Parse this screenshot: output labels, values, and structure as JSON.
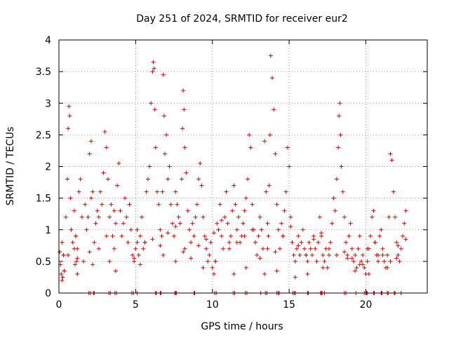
{
  "chart_data": {
    "type": "scatter",
    "title": "Day 251 of 2024, SRMTID for receiver eur2",
    "xlabel": "GPS time / hours",
    "ylabel": "SRMTID / TECUs",
    "xlim": [
      0,
      24
    ],
    "ylim": [
      0,
      4
    ],
    "xticks": [
      0,
      5,
      10,
      15,
      20
    ],
    "xtick_labels": [
      "0",
      "5",
      "10",
      "15",
      "20"
    ],
    "yticks": [
      0,
      0.5,
      1,
      1.5,
      2,
      2.5,
      3,
      3.5,
      4
    ],
    "ytick_labels": [
      "0",
      "0.5",
      "1",
      "1.5",
      "2",
      "2.5",
      "3",
      "3.5",
      "4"
    ],
    "grid": true,
    "marker": "plus",
    "color": "#e00000",
    "series": [
      {
        "name": "SRMTID",
        "x": [
          0.05,
          0.1,
          0.15,
          0.2,
          0.25,
          0.3,
          0.35,
          0.45,
          0.55,
          0.6,
          0.65,
          0.7,
          0.75,
          0.8,
          0.9,
          1.0,
          1.1,
          1.2,
          1.3,
          1.4,
          1.5,
          1.6,
          1.7,
          1.8,
          1.9,
          2.0,
          2.1,
          2.2,
          2.3,
          2.4,
          2.5,
          2.6,
          2.7,
          2.8,
          2.9,
          3.0,
          3.1,
          3.2,
          3.3,
          3.4,
          3.5,
          3.6,
          3.7,
          3.8,
          3.9,
          4.0,
          4.1,
          4.2,
          4.3,
          4.4,
          4.5,
          4.6,
          4.7,
          4.8,
          4.9,
          5.0,
          5.1,
          5.2,
          5.3,
          5.4,
          5.5,
          5.6,
          5.7,
          5.8,
          5.9,
          6.0,
          6.1,
          6.15,
          6.2,
          6.25,
          6.3,
          6.4,
          6.5,
          6.6,
          6.7,
          6.75,
          6.8,
          6.85,
          6.9,
          7.0,
          7.1,
          7.2,
          7.3,
          7.4,
          7.5,
          7.6,
          7.7,
          7.8,
          7.9,
          8.0,
          8.05,
          8.1,
          8.15,
          8.2,
          8.3,
          8.4,
          8.5,
          8.6,
          8.7,
          8.8,
          8.9,
          9.0,
          9.1,
          9.2,
          9.3,
          9.4,
          9.5,
          9.6,
          9.7,
          9.8,
          9.9,
          10.0,
          10.1,
          10.2,
          10.3,
          10.4,
          10.5,
          10.6,
          10.7,
          10.8,
          10.9,
          11.0,
          11.1,
          11.2,
          11.3,
          11.4,
          11.5,
          11.6,
          11.7,
          11.8,
          11.9,
          12.0,
          12.1,
          12.2,
          12.3,
          12.4,
          12.5,
          12.6,
          12.7,
          12.8,
          12.9,
          13.0,
          13.1,
          13.2,
          13.3,
          13.4,
          13.5,
          13.6,
          13.65,
          13.7,
          13.75,
          13.8,
          13.9,
          14.0,
          14.1,
          14.2,
          14.3,
          14.4,
          14.5,
          14.6,
          14.7,
          14.8,
          14.9,
          15.0,
          15.1,
          15.2,
          15.3,
          15.4,
          15.5,
          15.6,
          15.7,
          15.8,
          15.9,
          16.0,
          16.1,
          16.2,
          16.3,
          16.4,
          16.5,
          16.6,
          16.7,
          16.8,
          16.9,
          17.0,
          17.1,
          17.2,
          17.3,
          17.4,
          17.5,
          17.6,
          17.7,
          17.8,
          17.9,
          18.0,
          18.1,
          18.2,
          18.25,
          18.3,
          18.35,
          18.4,
          18.5,
          18.6,
          18.7,
          18.8,
          18.9,
          19.0,
          19.1,
          19.2,
          19.3,
          19.4,
          19.5,
          19.6,
          19.7,
          19.8,
          19.9,
          20.0,
          20.1,
          20.2,
          20.3,
          20.4,
          20.5,
          20.6,
          20.7,
          20.8,
          20.9,
          21.0,
          21.1,
          21.2,
          21.3,
          21.4,
          21.5,
          21.6,
          21.7,
          21.8,
          21.9,
          22.0,
          22.1,
          22.2,
          22.3,
          22.4,
          22.5,
          22.6,
          0.2,
          0.6,
          1.1,
          2.1,
          2.6,
          3.1,
          3.6,
          4.6,
          5.1,
          5.6,
          6.1,
          6.6,
          7.1,
          7.6,
          8.1,
          8.6,
          9.1,
          9.6,
          10.1,
          10.6,
          11.1,
          11.6,
          12.1,
          12.6,
          13.1,
          13.6,
          14.1,
          14.6,
          15.1,
          15.6,
          16.1,
          16.6,
          17.1,
          17.6,
          18.1,
          18.6,
          19.1,
          19.6,
          20.1,
          20.6,
          21.1,
          21.6,
          22.1,
          22.6,
          0.3,
          1.0,
          1.2,
          2.0,
          2.2,
          3.3,
          3.7,
          4.9,
          5.3,
          6.8,
          7.6,
          8.2,
          9.4,
          10.2,
          11.4,
          12.2,
          13.4,
          14.2,
          15.4,
          16.2,
          17.2,
          18.8,
          19.3,
          19.8,
          20.2,
          20.8,
          21.4,
          22.0,
          0.35,
          1.05,
          1.15,
          1.2,
          1.95,
          2.05,
          2.25,
          2.3,
          3.25,
          3.35,
          3.65,
          3.75,
          4.75,
          4.85,
          5.1,
          6.3,
          6.35,
          6.6,
          6.65,
          7.55,
          7.6,
          7.65,
          8.8,
          8.85,
          10.15,
          10.25,
          11.35,
          11.45,
          12.15,
          12.25,
          13.15,
          13.45,
          13.55,
          14.2,
          14.3,
          14.35,
          15.25,
          15.35,
          15.4,
          16.2,
          16.25,
          17.05,
          17.1,
          17.15,
          17.3,
          18.6,
          18.7,
          19.35,
          19.9,
          20.0,
          20.05,
          20.1,
          20.5,
          20.55,
          21.0,
          21.05,
          21.4,
          21.45,
          21.85,
          21.9,
          22.3
        ],
        "y": [
          0.65,
          0.45,
          0.3,
          0.2,
          0.25,
          0.6,
          0.35,
          1.2,
          1.8,
          2.6,
          2.95,
          2.8,
          1.5,
          1.0,
          0.8,
          1.3,
          0.9,
          0.7,
          1.6,
          1.8,
          1.2,
          0.5,
          1.4,
          1.0,
          1.2,
          2.2,
          2.4,
          1.6,
          0.8,
          1.1,
          1.3,
          0.7,
          1.6,
          1.4,
          1.9,
          2.55,
          2.3,
          1.8,
          1.2,
          1.4,
          0.9,
          1.3,
          1.1,
          1.7,
          2.05,
          1.3,
          0.9,
          1.1,
          1.5,
          1.2,
          0.8,
          1.4,
          1.0,
          0.6,
          0.5,
          0.7,
          0.8,
          0.6,
          0.9,
          1.2,
          0.7,
          0.8,
          1.6,
          1.8,
          2.0,
          3.0,
          3.5,
          3.65,
          3.55,
          2.9,
          2.3,
          1.6,
          1.4,
          1.0,
          0.9,
          1.6,
          3.45,
          2.8,
          2.2,
          2.5,
          1.8,
          2.0,
          1.4,
          1.1,
          0.9,
          1.6,
          1.4,
          1.2,
          1.1,
          1.8,
          2.6,
          3.2,
          2.9,
          2.3,
          1.9,
          1.3,
          1.0,
          0.8,
          1.1,
          0.9,
          1.2,
          1.4,
          1.8,
          2.05,
          1.7,
          1.2,
          0.9,
          0.7,
          0.5,
          0.6,
          0.8,
          0.4,
          0.3,
          0.5,
          1.1,
          1.0,
          1.4,
          0.9,
          0.7,
          1.2,
          1.6,
          1.1,
          0.8,
          0.9,
          1.3,
          1.7,
          1.4,
          1.0,
          1.2,
          0.8,
          0.9,
          1.1,
          1.3,
          1.5,
          1.8,
          2.5,
          2.3,
          1.4,
          1.0,
          0.8,
          0.6,
          0.9,
          1.2,
          1.0,
          0.7,
          2.4,
          1.6,
          1.1,
          0.9,
          1.7,
          2.5,
          3.75,
          3.4,
          2.9,
          2.2,
          1.4,
          1.0,
          0.7,
          1.1,
          0.9,
          1.3,
          1.6,
          2.3,
          2.0,
          1.2,
          0.8,
          0.6,
          0.5,
          0.7,
          0.9,
          0.6,
          0.8,
          1.0,
          0.7,
          0.6,
          0.5,
          0.8,
          0.7,
          0.6,
          0.9,
          0.7,
          0.5,
          0.8,
          1.2,
          0.9,
          0.6,
          0.5,
          0.7,
          0.4,
          0.6,
          0.8,
          1.1,
          1.5,
          1.3,
          1.8,
          2.3,
          2.8,
          3.0,
          2.5,
          2.0,
          1.6,
          1.2,
          0.8,
          0.6,
          0.9,
          1.1,
          0.7,
          0.5,
          0.6,
          0.4,
          0.7,
          0.9,
          0.5,
          0.6,
          0.4,
          0.3,
          0.5,
          0.7,
          0.9,
          1.2,
          1.3,
          0.8,
          0.6,
          0.5,
          0.9,
          1.0,
          0.7,
          0.5,
          0.4,
          0.6,
          1.2,
          2.2,
          2.1,
          1.6,
          1.2,
          0.8,
          0.6,
          0.5,
          0.7,
          0.9,
          1.1,
          1.3,
          0.8,
          0.6,
          0.9,
          1.5,
          1.2,
          0.9,
          0.7,
          1.4,
          1.0,
          0.8,
          0.85,
          0.75,
          0.95,
          1.05,
          0.65,
          0.55,
          0.75,
          0.85,
          0.95,
          1.15,
          0.7,
          0.8,
          0.9,
          1.0,
          0.55,
          0.7,
          0.65,
          0.9,
          1.05,
          0.75,
          0.6,
          0.85,
          0.95,
          0.7,
          0.6,
          0.65,
          0.55,
          0.45,
          0.7,
          0.8,
          0.6,
          0.5,
          0.75,
          0.85,
          0.6,
          0.7,
          0.55,
          0.65,
          0.45,
          0.5,
          0.35,
          0.55,
          0.45,
          0.6,
          0.5,
          0.7,
          0.4,
          0.5,
          0.3,
          0.4,
          0.3,
          0.35,
          0.25,
          0.3,
          0.4,
          0.55,
          0.35,
          0.45,
          0.3,
          0.6,
          0.4,
          0.55,
          0.35,
          0.45,
          0.5,
          0.3,
          0.0,
          0.0,
          0.0,
          0.0,
          0.0,
          0.0,
          0.0,
          0.0,
          0.0,
          0.0,
          0.0,
          0.0,
          0.0,
          0.0,
          0.0,
          0.0,
          0.0,
          0.0,
          0.0,
          0.0,
          0.0,
          0.0,
          0.0,
          0.0,
          0.0,
          0.0,
          0.0,
          0.0,
          0.0,
          0.0,
          0.0,
          0.0,
          0.0,
          0.0,
          0.0,
          0.0,
          0.0,
          0.0,
          0.0,
          0.0,
          0.0,
          0.0,
          0.0,
          0.0,
          0.0,
          0.0,
          0.0,
          0.0,
          0.0,
          0.0,
          0.0,
          0.0,
          0.0,
          0.0,
          0.0,
          0.0,
          0.0
        ]
      }
    ]
  }
}
